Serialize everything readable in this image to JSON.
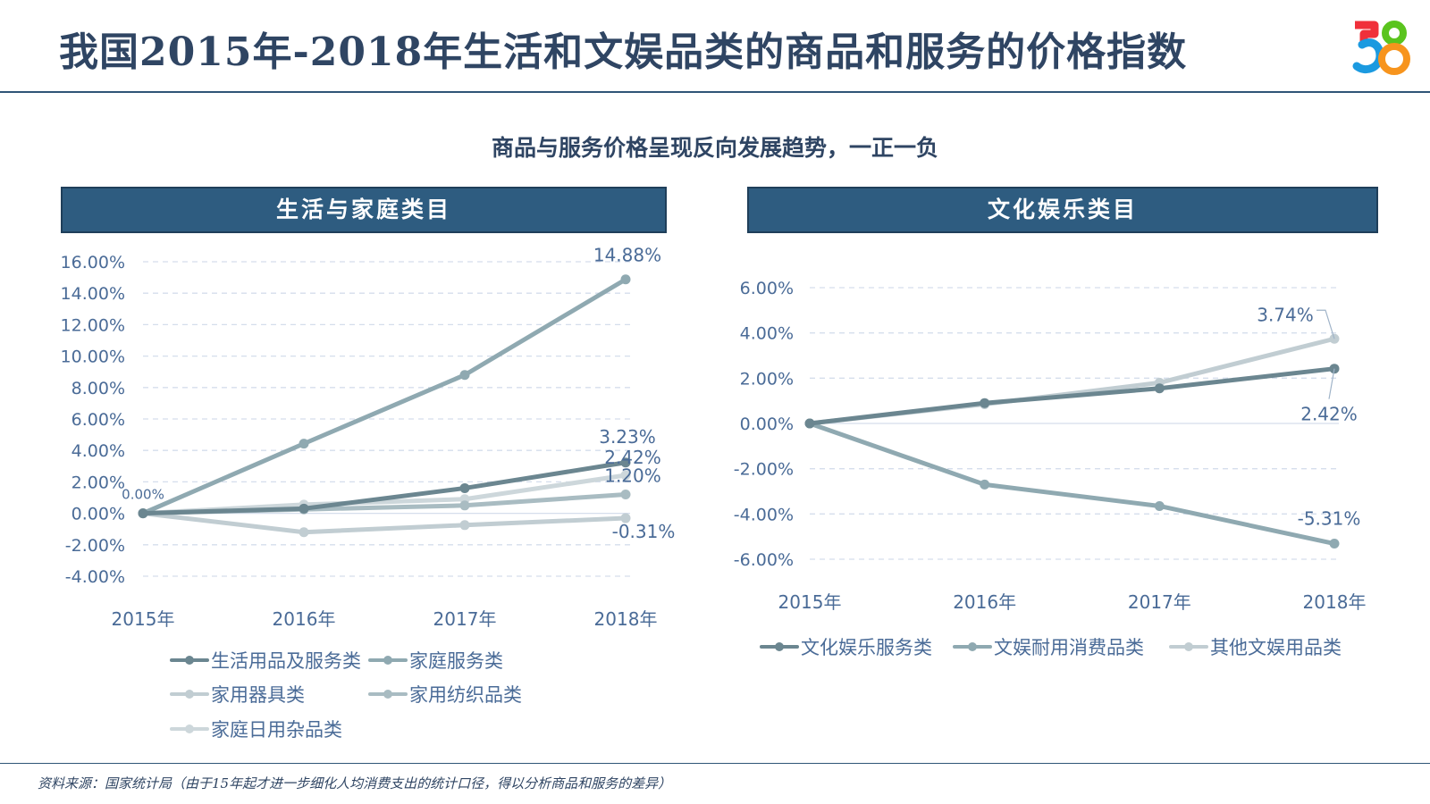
{
  "title": "我国2015年-2018年生活和文娱品类的商品和服务的价格指数",
  "logo": {
    "text": "58",
    "icon": "58-logo-icon",
    "colors": {
      "five_top": "#f0303a",
      "five_bottom": "#1b9ae0",
      "eight_top": "#5ac41e",
      "eight_bottom": "#f7941d"
    }
  },
  "subtitle": "商品与服务价格呈现反向发展趋势，一正一负",
  "source_note": "资料来源：国家统计局（由于15年起才进一步细化人均消费支出的统计口径，得以分析商品和服务的差异）",
  "colors": {
    "title": "#2f4563",
    "header_bg": "#2e5c80",
    "axis_text": "#4a6b97",
    "grid": "#d5deec"
  },
  "chart_data": [
    {
      "type": "line",
      "panel_title": "生活与家庭类目",
      "x": [
        "2015年",
        "2016年",
        "2017年",
        "2018年"
      ],
      "ylim": [
        -4,
        16
      ],
      "yticks": [
        16,
        14,
        12,
        10,
        8,
        6,
        4,
        2,
        0,
        -2,
        -4
      ],
      "ytick_labels": [
        "16.00%",
        "14.00%",
        "12.00%",
        "10.00%",
        "8.00%",
        "6.00%",
        "4.00%",
        "2.00%",
        "0.00%",
        "-2.00%",
        "-4.00%"
      ],
      "grid": true,
      "legend_position": "bottom",
      "series": [
        {
          "name": "生活用品及服务类",
          "color": "#6b8690",
          "values": [
            0,
            0.3,
            1.6,
            3.23
          ],
          "end_label": "3.23%"
        },
        {
          "name": "家庭服务类",
          "color": "#8fa9b1",
          "values": [
            0,
            4.43,
            8.8,
            14.88
          ],
          "end_label": "14.88%"
        },
        {
          "name": "家用器具类",
          "color": "#c1cdd2",
          "values": [
            0,
            -1.2,
            -0.75,
            -0.31
          ],
          "end_label": "-0.31%"
        },
        {
          "name": "家用纺织品类",
          "color": "#a9bcc2",
          "values": [
            0,
            0.25,
            0.5,
            1.2
          ],
          "end_label": "1.20%"
        },
        {
          "name": "家庭日用杂品类",
          "color": "#cdd7db",
          "values": [
            0,
            0.55,
            0.9,
            2.42
          ],
          "end_label": "2.42%"
        }
      ],
      "annotations": [
        {
          "text": "0.00%",
          "x": "2015年",
          "y": 0
        }
      ]
    },
    {
      "type": "line",
      "panel_title": "文化娱乐类目",
      "x": [
        "2015年",
        "2016年",
        "2017年",
        "2018年"
      ],
      "ylim": [
        -6,
        6
      ],
      "yticks": [
        6,
        4,
        2,
        0,
        -2,
        -4,
        -6
      ],
      "ytick_labels": [
        "6.00%",
        "4.00%",
        "2.00%",
        "0.00%",
        "-2.00%",
        "-4.00%",
        "-6.00%"
      ],
      "grid": true,
      "legend_position": "bottom",
      "series": [
        {
          "name": "文化娱乐服务类",
          "color": "#6b8690",
          "values": [
            0,
            0.9,
            1.55,
            2.42
          ],
          "end_label": "2.42%"
        },
        {
          "name": "文娱耐用消费品类",
          "color": "#8fa9b1",
          "values": [
            0,
            -2.7,
            -3.65,
            -5.31
          ],
          "end_label": "-5.31%"
        },
        {
          "name": "其他文娱用品类",
          "color": "#c1cdd2",
          "values": [
            0,
            0.85,
            1.8,
            3.74
          ],
          "end_label": "3.74%"
        }
      ]
    }
  ]
}
